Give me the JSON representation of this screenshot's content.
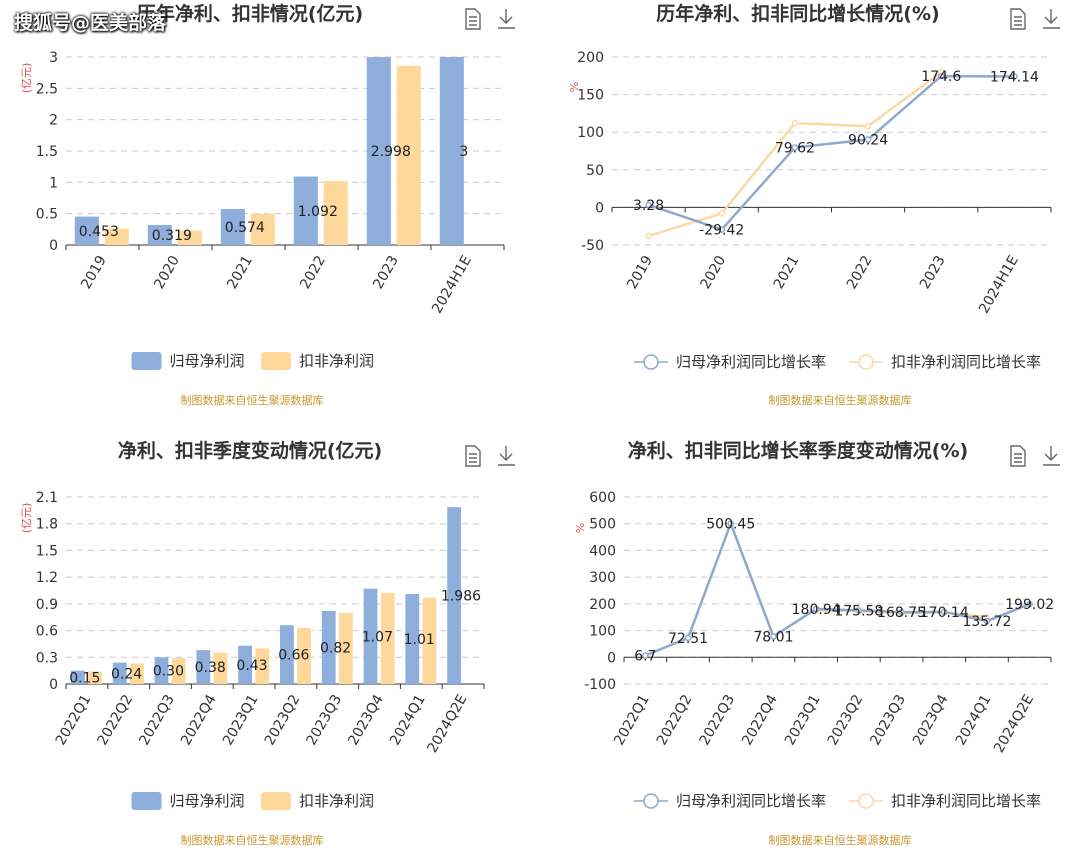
{
  "watermark": "搜狐号@医美部落",
  "source_text": "制图数据来自恒生聚源数据库",
  "colors": {
    "series_primary": "#8eaedc",
    "series_secondary": "#fdd89a",
    "line_primary": "#8fa9cc",
    "line_secondary": "#fcd9a4",
    "unit_label": "#d9534f",
    "source_text": "#c8962e"
  },
  "icons": [
    "document-icon",
    "download-icon"
  ],
  "chart_data": [
    {
      "id": "annual-profit",
      "type": "bar",
      "title": "历年净利、扣非情况(亿元)",
      "unit_label": "(亿元)",
      "categories": [
        "2019",
        "2020",
        "2021",
        "2022",
        "2023",
        "2024H1E"
      ],
      "series": [
        {
          "name": "归母净利润",
          "values": [
            0.453,
            0.319,
            0.574,
            1.092,
            2.998,
            3
          ]
        },
        {
          "name": "扣非净利润",
          "values": [
            0.26,
            0.23,
            0.5,
            1.02,
            2.86,
            null
          ]
        }
      ],
      "data_labels": [
        "0.453",
        "0.319",
        "0.574",
        "1.092",
        "2.998",
        "3"
      ],
      "yticks": [
        "0",
        "0.5",
        "1",
        "1.5",
        "2",
        "2.5",
        "3"
      ],
      "ylim": [
        0,
        3
      ],
      "grid": true,
      "legend_position": "bottom"
    },
    {
      "id": "annual-growth",
      "type": "line",
      "title": "历年净利、扣非同比增长情况(%)",
      "unit_label": "%",
      "categories": [
        "2019",
        "2020",
        "2021",
        "2022",
        "2023",
        "2024H1E"
      ],
      "series": [
        {
          "name": "归母净利润同比增长率",
          "values": [
            3.28,
            -29.42,
            79.62,
            90.24,
            174.6,
            174.14
          ]
        },
        {
          "name": "扣非净利润同比增长率",
          "values": [
            -38,
            -8,
            112,
            108,
            180,
            null
          ]
        }
      ],
      "data_labels": [
        "3.28",
        "-29.42",
        "79.62",
        "90.24",
        "174.6",
        "174.14"
      ],
      "yticks": [
        "-50",
        "0",
        "50",
        "100",
        "150",
        "200"
      ],
      "ylim": [
        -50,
        200
      ],
      "grid": true,
      "legend_position": "bottom"
    },
    {
      "id": "quarterly-profit",
      "type": "bar",
      "title": "净利、扣非季度变动情况(亿元)",
      "unit_label": "(亿元)",
      "categories": [
        "2022Q1",
        "2022Q2",
        "2022Q3",
        "2022Q4",
        "2023Q1",
        "2023Q2",
        "2023Q3",
        "2023Q4",
        "2024Q1",
        "2024Q2E"
      ],
      "series": [
        {
          "name": "归母净利润",
          "values": [
            0.15,
            0.24,
            0.3,
            0.38,
            0.43,
            0.66,
            0.82,
            1.07,
            1.01,
            1.986
          ]
        },
        {
          "name": "扣非净利润",
          "values": [
            0.14,
            0.23,
            0.29,
            0.35,
            0.4,
            0.63,
            0.8,
            1.02,
            0.97,
            null
          ]
        }
      ],
      "data_labels": [
        "0.15",
        "0.24",
        "0.30",
        "0.38",
        "0.43",
        "0.66",
        "0.82",
        "1.07",
        "1.01",
        "1.986"
      ],
      "yticks": [
        "0",
        "0.3",
        "0.6",
        "0.9",
        "1.2",
        "1.5",
        "1.8",
        "2.1"
      ],
      "ylim": [
        0,
        2.1
      ],
      "grid": true,
      "legend_position": "bottom"
    },
    {
      "id": "quarterly-growth",
      "type": "line",
      "title": "净利、扣非同比增长率季度变动情况(%)",
      "unit_label": "%",
      "categories": [
        "2022Q1",
        "2022Q2",
        "2022Q3",
        "2022Q4",
        "2023Q1",
        "2023Q2",
        "2023Q3",
        "2023Q4",
        "2024Q1",
        "2024Q2E"
      ],
      "series": [
        {
          "name": "归母净利润同比增长率",
          "values": [
            6.7,
            72.51,
            500.45,
            78.01,
            180.94,
            175.58,
            168.75,
            170.14,
            135.72,
            199.02
          ]
        },
        {
          "name": "扣非净利润同比增长率",
          "values": [
            null,
            null,
            null,
            null,
            175,
            172,
            165,
            168,
            150,
            null
          ]
        }
      ],
      "data_labels": [
        "6.7",
        "72.51",
        "500.45",
        "78.01",
        "180.94",
        "175.58",
        "168.75",
        "170.14",
        "135.72",
        "199.02"
      ],
      "yticks": [
        "-100",
        "0",
        "100",
        "200",
        "300",
        "400",
        "500",
        "600"
      ],
      "ylim": [
        -100,
        600
      ],
      "grid": true,
      "legend_position": "bottom"
    }
  ]
}
